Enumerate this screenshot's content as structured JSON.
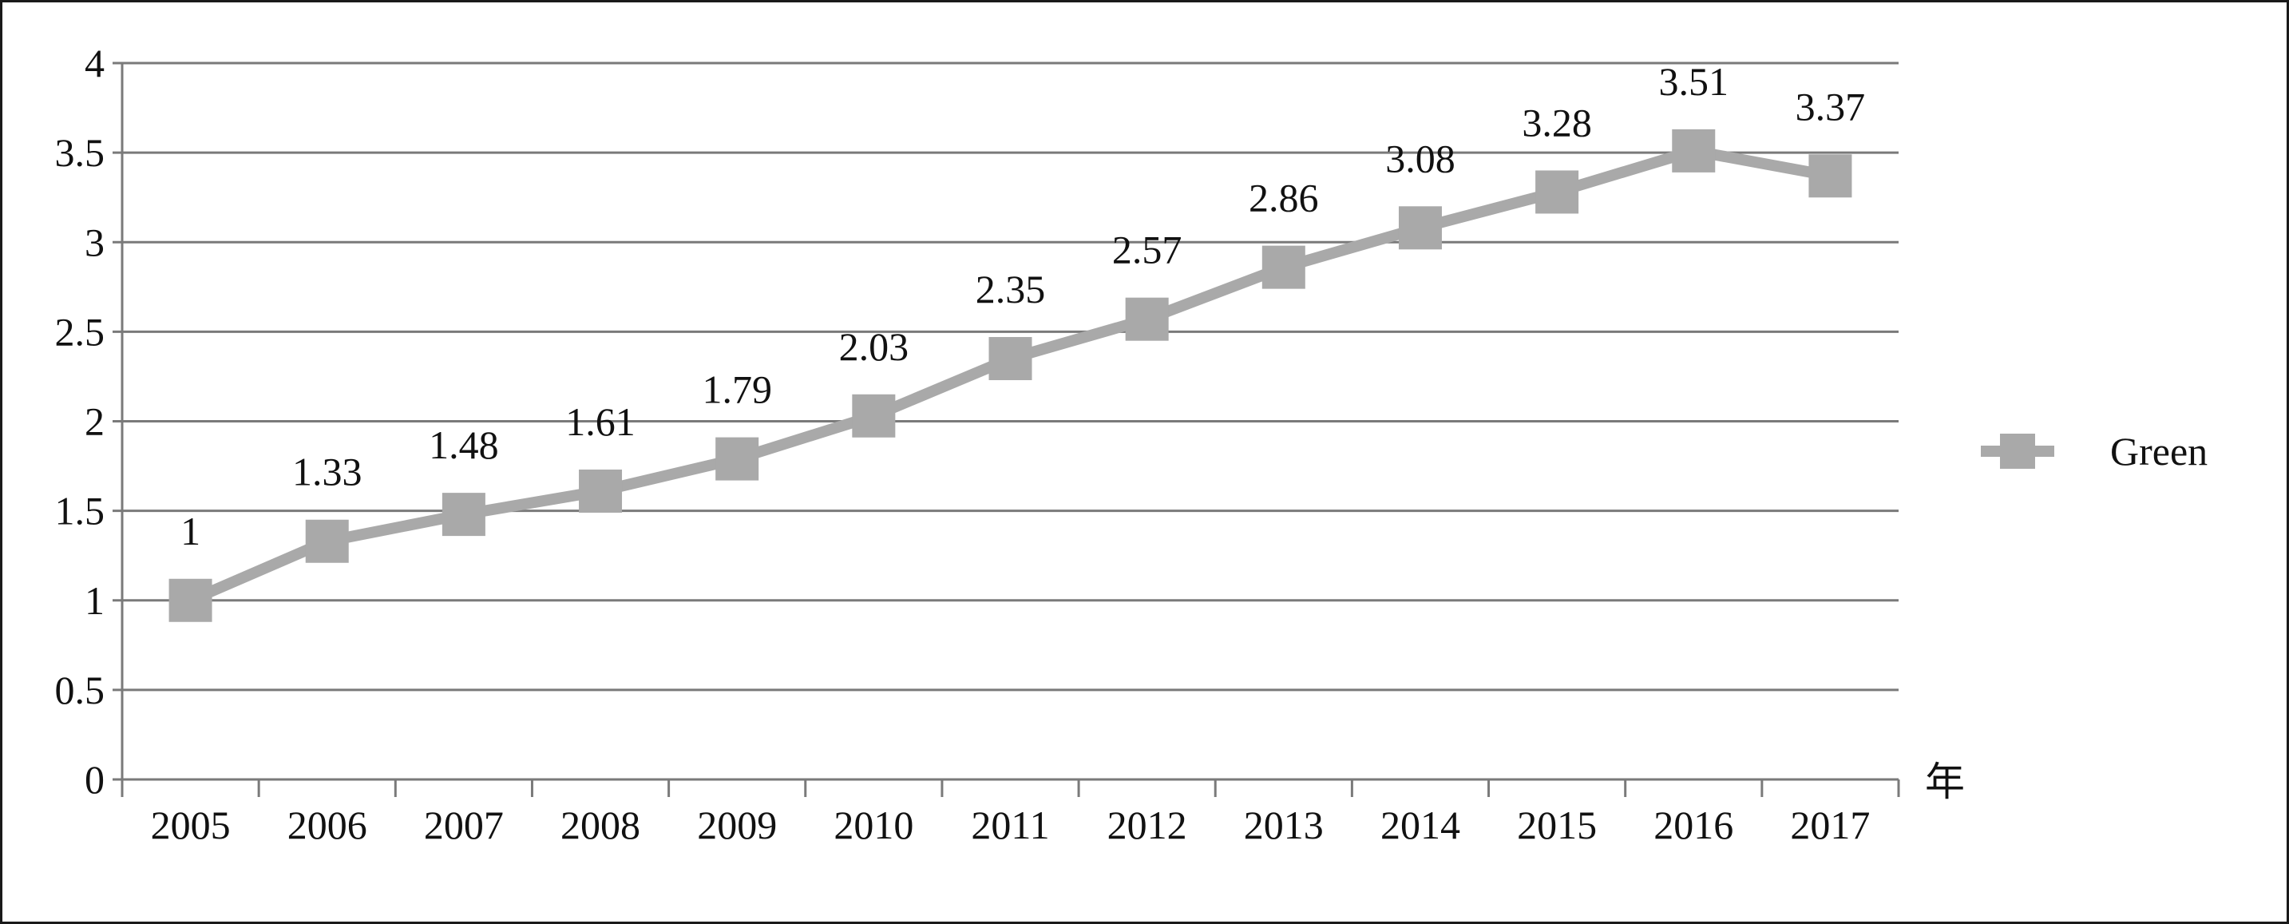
{
  "chart_data": {
    "type": "line",
    "x_unit_label": "年",
    "categories": [
      "2005",
      "2006",
      "2007",
      "2008",
      "2009",
      "2010",
      "2011",
      "2012",
      "2013",
      "2014",
      "2015",
      "2016",
      "2017"
    ],
    "y_ticks": [
      "0",
      "0.5",
      "1",
      "1.5",
      "2",
      "2.5",
      "3",
      "3.5",
      "4"
    ],
    "ylim": [
      0,
      4
    ],
    "grid": true,
    "legend_position": "right",
    "series": [
      {
        "name": "Green",
        "color": "#a9a9a9",
        "marker": "square",
        "values": [
          1,
          1.33,
          1.48,
          1.61,
          1.79,
          2.03,
          2.35,
          2.57,
          2.86,
          3.08,
          3.28,
          3.51,
          3.37
        ],
        "labels": [
          "1",
          "1.33",
          "1.48",
          "1.61",
          "1.79",
          "2.03",
          "2.35",
          "2.57",
          "2.86",
          "3.08",
          "3.28",
          "3.51",
          "3.37"
        ]
      }
    ]
  }
}
